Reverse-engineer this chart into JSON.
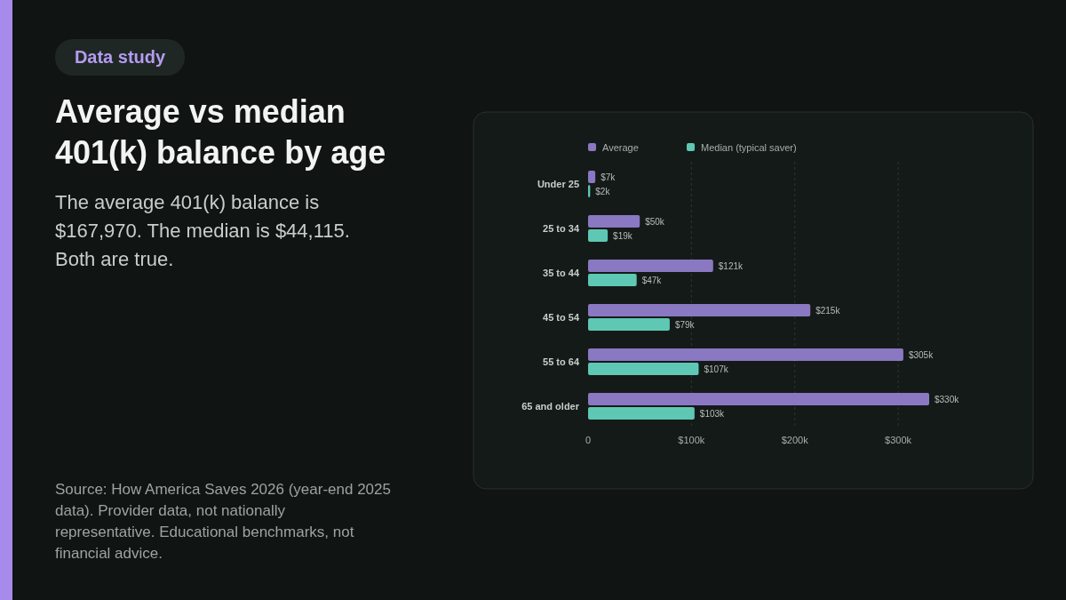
{
  "chart_data": {
    "type": "bar",
    "orientation": "horizontal",
    "title": "Average vs median 401(k) balance by age",
    "subtitle": "The average 401(k) balance is $167,970.  The median is $44,115.  Both are true.",
    "annotations": [
      "Data study",
      "Source: How America Saves 2026 (year-end 2025 data). Provider data, not nationally representative. Educational benchmarks, not financial advice."
    ],
    "categories": [
      "Under 25",
      "25 to 34",
      "35 to 44",
      "45 to 54",
      "55 to 64",
      "65 and older"
    ],
    "series": [
      {
        "name": "Average",
        "color": "#8a78c2",
        "values": [
          7,
          50,
          121,
          215,
          305,
          330
        ],
        "value_labels": [
          "$7k",
          "$50k",
          "$121k",
          "$215k",
          "$305k",
          "$330k"
        ]
      },
      {
        "name": "Median (typical saver)",
        "color": "#5ec8b4",
        "values": [
          2,
          19,
          47,
          79,
          107,
          103
        ],
        "value_labels": [
          "$2k",
          "$19k",
          "$47k",
          "$79k",
          "$107k",
          "$103k"
        ]
      }
    ],
    "xlim": [
      0,
      330
    ],
    "xticks": [
      0,
      {
        "value": 100,
        "label": "$100k"
      },
      {
        "value": 200,
        "label": "$200k"
      },
      {
        "value": 300,
        "label": "$300k"
      }
    ],
    "grid": "x",
    "legend": "top"
  }
}
